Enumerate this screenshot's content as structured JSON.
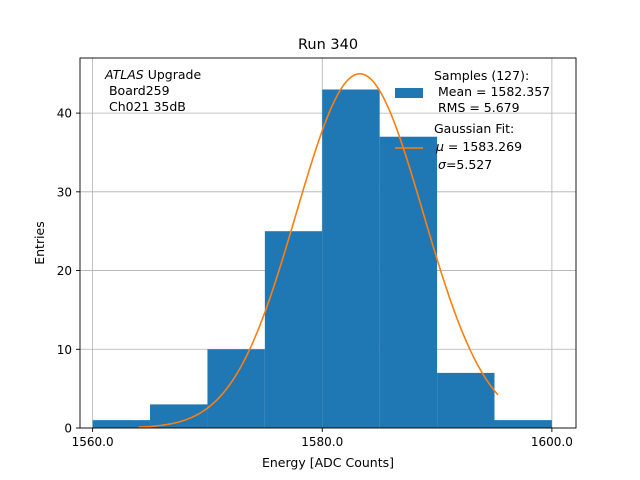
{
  "chart_data": {
    "type": "bar",
    "title": "Run 340",
    "xlabel": "Energy [ADC Counts]",
    "ylabel": "Entries",
    "xlim": [
      1558.9,
      1602.1
    ],
    "ylim": [
      0,
      47
    ],
    "grid": true,
    "x_ticks": [
      1560,
      1580,
      1600
    ],
    "x_tick_labels": [
      "1560.0",
      "1580.0",
      "1600.0"
    ],
    "y_ticks": [
      0,
      10,
      20,
      30,
      40
    ],
    "y_tick_labels": [
      "0",
      "10",
      "20",
      "30",
      "40"
    ],
    "bin_edges": [
      1560,
      1565,
      1570,
      1575,
      1580,
      1585,
      1590,
      1595,
      1600
    ],
    "counts": [
      1,
      3,
      10,
      25,
      43,
      37,
      7,
      1
    ],
    "bar_color": "#1f77b4",
    "fit": {
      "mu": 1583.269,
      "sigma": 5.527,
      "amplitude": 45,
      "x_range": [
        1564,
        1595.3
      ],
      "color": "#ff7f0e"
    },
    "annotation": {
      "italic": "ATLAS",
      "line1_rest": " Upgrade",
      "line2": " Board259",
      "line3": " Ch021 35dB"
    },
    "legend": {
      "position": "top-right",
      "samples": {
        "line1": "Samples (127):",
        "line2": " Mean = 1582.357",
        "line3": " RMS = 5.679"
      },
      "fit": {
        "line1": "Gaussian Fit:",
        "mu_sym": "μ",
        "mu_rest": " = 1583.269",
        "sigma_sym": "σ",
        "sigma_rest": "=5.527"
      }
    }
  }
}
